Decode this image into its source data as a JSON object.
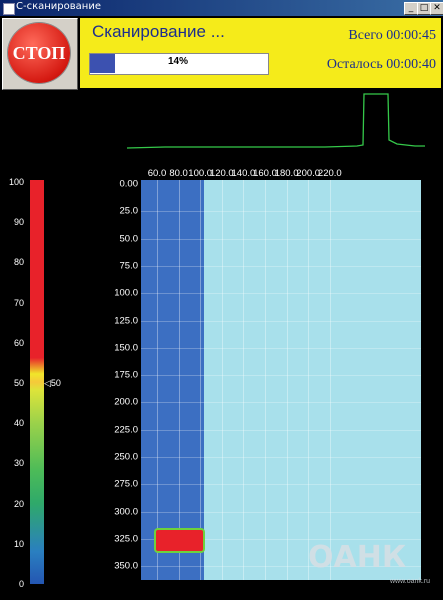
{
  "window": {
    "title": "С-сканирование",
    "btn_min": "_",
    "btn_max": "□",
    "btn_close": "✕"
  },
  "stop_button": {
    "label": "СТОП",
    "color": "#d51a12"
  },
  "status": {
    "title": "Сканирование ...",
    "progress_percent": 14,
    "progress_label": "14%",
    "total": "Всего 00:00:45",
    "remaining": "Осталось 00:00:40"
  },
  "colorbar": {
    "ticks": [
      "100",
      "90",
      "80",
      "70",
      "60",
      "50",
      "40",
      "30",
      "20",
      "10",
      "0"
    ],
    "marker_label": "50"
  },
  "plot": {
    "x_ticks": [
      "60.0",
      "80.0",
      "100.0",
      "120.0",
      "140.0",
      "160.0",
      "180.0",
      "200.0",
      "220.0"
    ],
    "y_ticks": [
      "0.00",
      "25.0",
      "50.0",
      "75.0",
      "100.0",
      "125.0",
      "150.0",
      "175.0",
      "200.0",
      "225.0",
      "250.0",
      "275.0",
      "300.0",
      "325.0",
      "350.0"
    ],
    "scanned_color": "#3c6fc2",
    "empty_color": "#a8e0eb",
    "defect_color": "#e8222a"
  },
  "watermark": {
    "text": "ОАНК",
    "sub": "www.oank.ru"
  }
}
